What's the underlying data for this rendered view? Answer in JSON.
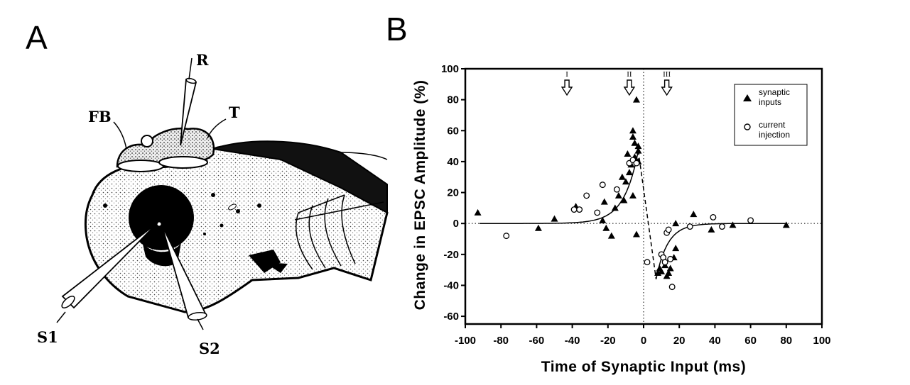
{
  "panel_a": {
    "letter": "A",
    "labels": {
      "fb": "FB",
      "r": "R",
      "t": "T",
      "s1": "S1",
      "s2": "S2"
    }
  },
  "panel_b": {
    "letter": "B"
  },
  "chart_data": {
    "type": "scatter",
    "xlabel": "Time of Synaptic Input (ms)",
    "ylabel": "Change in EPSC Amplitude (%)",
    "xlim": [
      -100,
      100
    ],
    "ylim": [
      -65,
      100
    ],
    "xticks": [
      -100,
      -80,
      -60,
      -40,
      -20,
      0,
      20,
      40,
      60,
      80,
      100
    ],
    "yticks": [
      -60,
      -40,
      -20,
      0,
      20,
      40,
      60,
      80,
      100
    ],
    "grid": false,
    "legend_position": "top-right",
    "reference_lines": [
      "y = 0 (dotted)",
      "x = 0 (dotted)"
    ],
    "arrows": [
      {
        "label": "I",
        "x": -43
      },
      {
        "label": "II",
        "x": -8
      },
      {
        "label": "III",
        "x": 13
      }
    ],
    "series": [
      {
        "name": "synaptic inputs",
        "marker": "filled-triangle",
        "points": [
          [
            -93,
            7
          ],
          [
            -59,
            -3
          ],
          [
            -50,
            3
          ],
          [
            -38,
            11
          ],
          [
            -23,
            2
          ],
          [
            -22,
            14
          ],
          [
            -21,
            -3
          ],
          [
            -18,
            -8
          ],
          [
            -16,
            10
          ],
          [
            -14,
            18
          ],
          [
            -12,
            30
          ],
          [
            -11,
            15
          ],
          [
            -10,
            27
          ],
          [
            -9,
            45
          ],
          [
            -8,
            33
          ],
          [
            -7,
            38
          ],
          [
            -6,
            60
          ],
          [
            -6,
            56
          ],
          [
            -5,
            52
          ],
          [
            -5,
            43
          ],
          [
            -4,
            80
          ],
          [
            -3,
            47
          ],
          [
            -3,
            40
          ],
          [
            -3,
            50
          ],
          [
            -4,
            -7
          ],
          [
            -6,
            18
          ],
          [
            8,
            -32
          ],
          [
            9,
            -29
          ],
          [
            10,
            -31
          ],
          [
            12,
            -27
          ],
          [
            13,
            -34
          ],
          [
            14,
            -32
          ],
          [
            15,
            -29
          ],
          [
            17,
            -22
          ],
          [
            18,
            -16
          ],
          [
            18,
            0
          ],
          [
            28,
            6
          ],
          [
            38,
            -4
          ],
          [
            50,
            -1
          ],
          [
            80,
            -1
          ]
        ]
      },
      {
        "name": "current\ninjection",
        "marker": "open-circle",
        "points": [
          [
            -77,
            -8
          ],
          [
            -39,
            9
          ],
          [
            -36,
            9
          ],
          [
            -32,
            18
          ],
          [
            -26,
            7
          ],
          [
            -23,
            25
          ],
          [
            -15,
            22
          ],
          [
            -8,
            39
          ],
          [
            -6,
            41
          ],
          [
            -4,
            39
          ],
          [
            2,
            -25
          ],
          [
            10,
            -20
          ],
          [
            11,
            -22
          ],
          [
            12,
            -25
          ],
          [
            13,
            -6
          ],
          [
            14,
            -4
          ],
          [
            15,
            -23
          ],
          [
            16,
            -41
          ],
          [
            26,
            -2
          ],
          [
            39,
            4
          ],
          [
            44,
            -2
          ],
          [
            60,
            2
          ]
        ]
      }
    ],
    "fit_curves": {
      "pre": {
        "amplitude": 47,
        "tau_ms": 8,
        "range": [
          -92,
          -3
        ]
      },
      "transition": [
        [
          -3,
          47
        ],
        [
          7,
          -36
        ]
      ],
      "post": {
        "amplitude": -36,
        "tau_ms": 6.5,
        "range": [
          7,
          80
        ]
      }
    }
  }
}
